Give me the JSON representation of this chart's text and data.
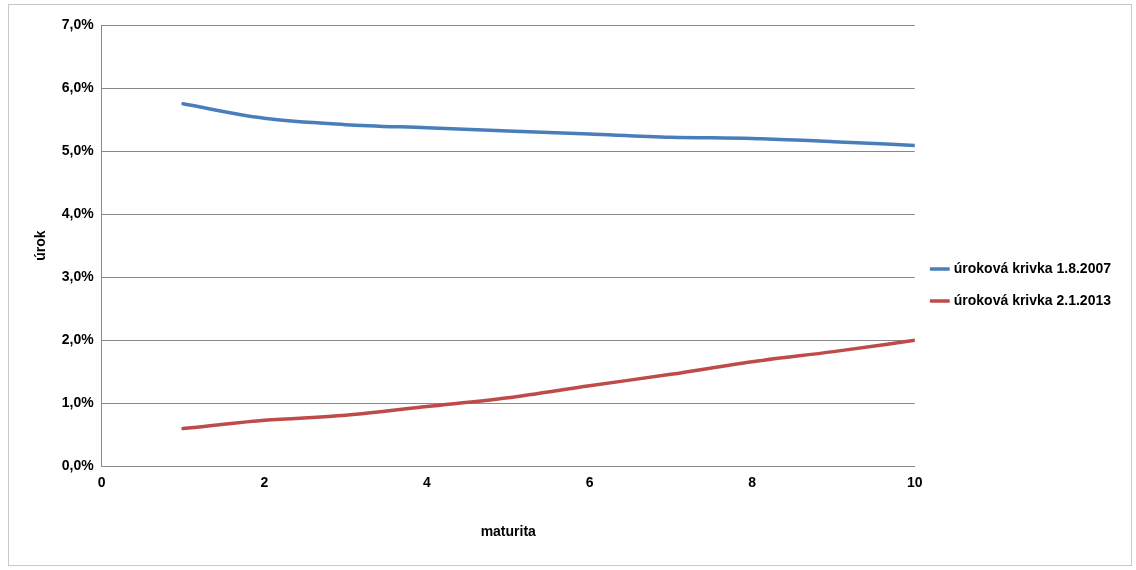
{
  "chart_data": {
    "type": "line",
    "xlabel": "maturita",
    "ylabel": "úrok",
    "x": [
      1,
      2,
      3,
      4,
      5,
      6,
      7,
      8,
      9,
      10
    ],
    "series": [
      {
        "name": "úroková krivka 1.8.2007",
        "color": "#4a7ebb",
        "values": [
          5.75,
          5.52,
          5.42,
          5.37,
          5.32,
          5.27,
          5.22,
          5.2,
          5.15,
          5.09
        ]
      },
      {
        "name": "úroková krivka 2.1.2013",
        "color": "#be4b48",
        "values": [
          0.6,
          0.73,
          0.81,
          0.95,
          1.09,
          1.28,
          1.46,
          1.66,
          1.82,
          2.0
        ]
      }
    ],
    "xlim": [
      0,
      10
    ],
    "xticks": [
      0,
      2,
      4,
      6,
      8,
      10
    ],
    "ylim": [
      0,
      7
    ],
    "yticks": [
      {
        "value": 0,
        "label": "0,0%"
      },
      {
        "value": 1,
        "label": "1,0%"
      },
      {
        "value": 2,
        "label": "2,0%"
      },
      {
        "value": 3,
        "label": "3,0%"
      },
      {
        "value": 4,
        "label": "4,0%"
      },
      {
        "value": 5,
        "label": "5,0%"
      },
      {
        "value": 6,
        "label": "6,0%"
      },
      {
        "value": 7,
        "label": "7,0%"
      }
    ],
    "grid": "y",
    "legend": "right",
    "marker": "none",
    "line_style": "solid"
  }
}
